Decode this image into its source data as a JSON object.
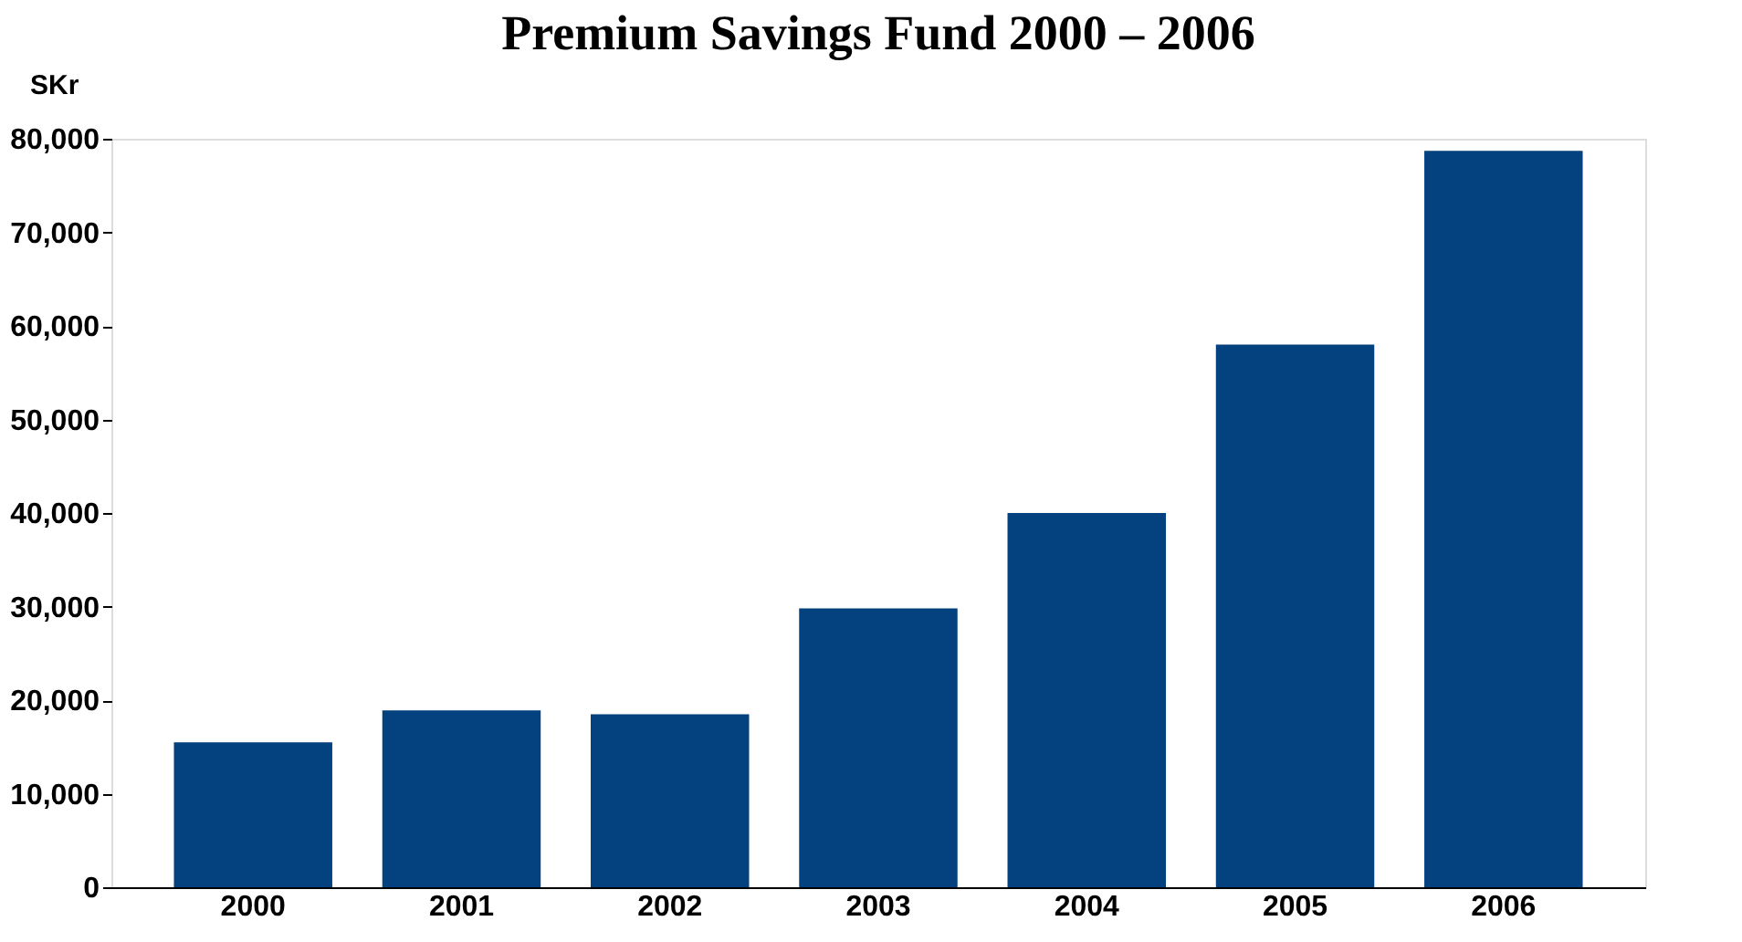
{
  "chart_data": {
    "type": "bar",
    "title": "Premium Savings Fund 2000 – 2006",
    "ylabel": "SKr",
    "categories": [
      "2000",
      "2001",
      "2002",
      "2003",
      "2004",
      "2005",
      "2006"
    ],
    "values": [
      15500,
      18900,
      18500,
      29800,
      40000,
      58000,
      78700
    ],
    "color": "#03427e",
    "ylim": [
      0,
      80000
    ],
    "yticks": [
      0,
      {
        "value": 10000,
        "label": "10,000"
      },
      {
        "value": 20000,
        "label": "20,000"
      },
      {
        "value": 30000,
        "label": "30,000"
      },
      {
        "value": 40000,
        "label": "40,000"
      },
      {
        "value": 50000,
        "label": "50,000"
      },
      {
        "value": 60000,
        "label": "60,000"
      },
      {
        "value": 70000,
        "label": "70,000"
      },
      {
        "value": 80000,
        "label": "80,000"
      }
    ],
    "grid": false
  }
}
